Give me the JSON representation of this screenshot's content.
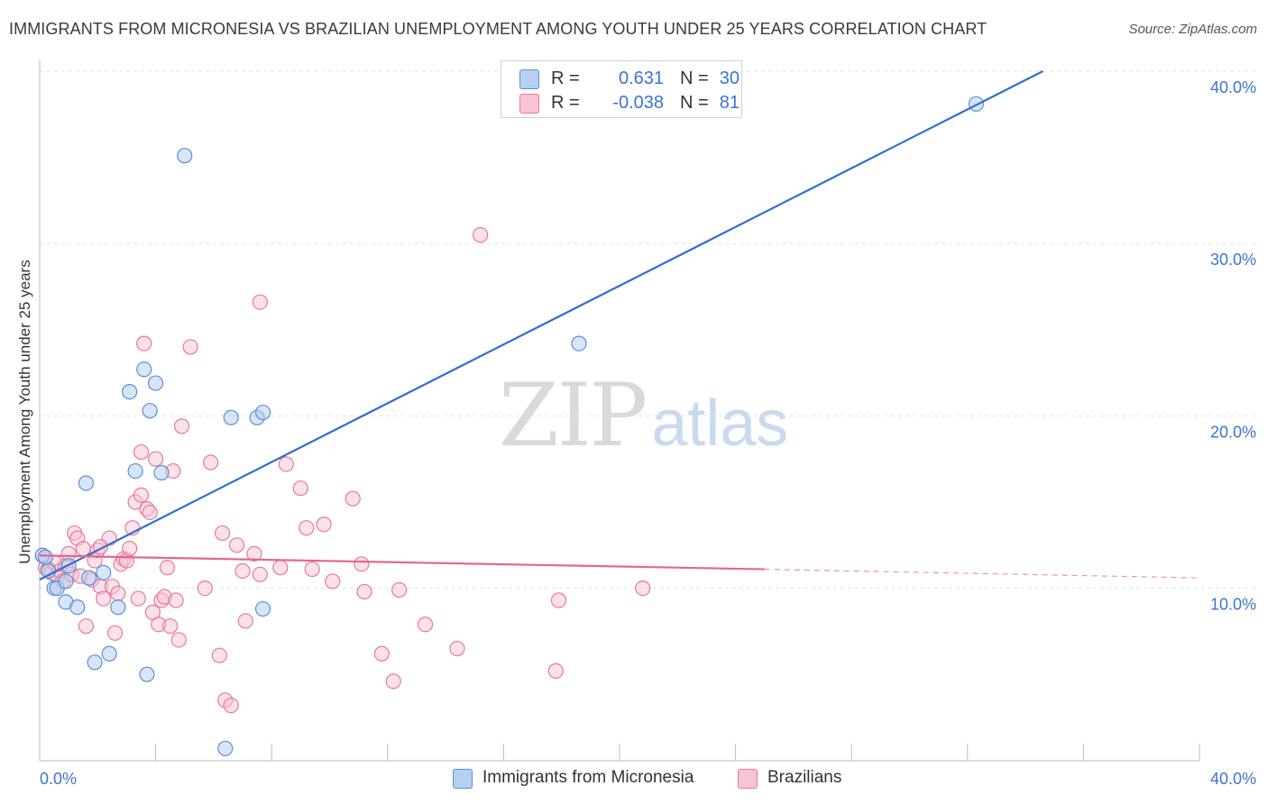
{
  "header": {
    "title": "IMMIGRANTS FROM MICRONESIA VS BRAZILIAN UNEMPLOYMENT AMONG YOUTH UNDER 25 YEARS CORRELATION CHART",
    "source": "Source: ZipAtlas.com"
  },
  "watermark": {
    "zip": "ZIP",
    "atlas": "atlas"
  },
  "legend": {
    "rows": [
      {
        "r_label": "R =",
        "r_value": "0.631",
        "n_label": "N =",
        "n_value": "30",
        "color": "#5b8fd9",
        "fill": "#b7d0f1"
      },
      {
        "r_label": "R =",
        "r_value": "-0.038",
        "n_label": "N =",
        "n_value": "81",
        "color": "#e8799b",
        "fill": "#f8c3d3"
      }
    ]
  },
  "colors": {
    "blue_stroke": "#5b8fd9",
    "blue_fill": "#b7d0f1",
    "blue_line": "#2f6fcf",
    "pink_stroke": "#e8799b",
    "pink_fill": "#f8c3d3",
    "pink_line": "#e66494",
    "tick_label": "#3b74d1"
  },
  "chart_data": {
    "type": "scatter",
    "title": "IMMIGRANTS FROM MICRONESIA VS BRAZILIAN UNEMPLOYMENT AMONG YOUTH UNDER 25 YEARS CORRELATION CHART",
    "xlabel": "",
    "ylabel": "Unemployment Among Youth under 25 years",
    "xlim": [
      0,
      40
    ],
    "ylim": [
      0,
      40
    ],
    "x_tick_labels": [
      {
        "value": 0,
        "label": "0.0%"
      },
      {
        "value": 40,
        "label": "40.0%"
      }
    ],
    "y_ticks": [
      {
        "value": 10,
        "label": "10.0%"
      },
      {
        "value": 20,
        "label": "20.0%"
      },
      {
        "value": 30,
        "label": "30.0%"
      },
      {
        "value": 40,
        "label": "40.0%"
      }
    ],
    "grid": true,
    "series": [
      {
        "name": "Immigrants from Micronesia",
        "color": "blue",
        "R": 0.631,
        "N": 30,
        "points": [
          [
            0.1,
            11.9
          ],
          [
            0.3,
            11.0
          ],
          [
            0.5,
            10.0
          ],
          [
            0.6,
            10.0
          ],
          [
            0.9,
            10.4
          ],
          [
            0.9,
            9.2
          ],
          [
            1.0,
            11.3
          ],
          [
            1.3,
            8.9
          ],
          [
            1.6,
            16.1
          ],
          [
            1.7,
            10.6
          ],
          [
            1.9,
            5.7
          ],
          [
            2.2,
            10.9
          ],
          [
            2.4,
            6.2
          ],
          [
            2.7,
            8.9
          ],
          [
            3.1,
            21.4
          ],
          [
            3.3,
            16.8
          ],
          [
            3.6,
            22.7
          ],
          [
            3.7,
            5.0
          ],
          [
            3.8,
            20.3
          ],
          [
            4.0,
            21.9
          ],
          [
            4.2,
            16.7
          ],
          [
            5.0,
            35.1
          ],
          [
            6.4,
            0.7
          ],
          [
            6.6,
            19.9
          ],
          [
            7.5,
            19.9
          ],
          [
            7.7,
            20.2
          ],
          [
            7.7,
            8.8
          ],
          [
            18.6,
            24.2
          ],
          [
            32.3,
            38.1
          ],
          [
            0.2,
            11.8
          ]
        ],
        "trend": {
          "x": [
            0.0,
            34.6
          ],
          "y": [
            10.5,
            40.0
          ]
        }
      },
      {
        "name": "Brazilians",
        "color": "pink",
        "R": -0.038,
        "N": 81,
        "points": [
          [
            0.1,
            11.9
          ],
          [
            0.2,
            11.2
          ],
          [
            0.3,
            11.1
          ],
          [
            0.4,
            10.9
          ],
          [
            0.5,
            11.5
          ],
          [
            0.6,
            10.7
          ],
          [
            0.7,
            11.0
          ],
          [
            0.8,
            10.4
          ],
          [
            0.9,
            11.3
          ],
          [
            1.0,
            12.0
          ],
          [
            1.1,
            10.8
          ],
          [
            1.2,
            13.2
          ],
          [
            1.3,
            12.9
          ],
          [
            1.4,
            10.7
          ],
          [
            1.5,
            12.3
          ],
          [
            1.6,
            7.8
          ],
          [
            1.8,
            10.5
          ],
          [
            1.9,
            11.6
          ],
          [
            2.0,
            12.2
          ],
          [
            2.1,
            10.1
          ],
          [
            2.2,
            9.4
          ],
          [
            2.4,
            12.9
          ],
          [
            2.5,
            10.1
          ],
          [
            2.6,
            7.4
          ],
          [
            2.7,
            9.7
          ],
          [
            2.8,
            11.4
          ],
          [
            2.9,
            11.7
          ],
          [
            3.0,
            11.6
          ],
          [
            3.1,
            12.3
          ],
          [
            3.2,
            13.5
          ],
          [
            3.3,
            15.0
          ],
          [
            3.4,
            9.4
          ],
          [
            3.5,
            17.9
          ],
          [
            3.6,
            24.2
          ],
          [
            3.7,
            14.6
          ],
          [
            3.8,
            14.4
          ],
          [
            3.9,
            8.6
          ],
          [
            4.0,
            17.5
          ],
          [
            4.1,
            7.9
          ],
          [
            4.2,
            9.3
          ],
          [
            4.3,
            9.5
          ],
          [
            4.4,
            11.2
          ],
          [
            4.5,
            7.8
          ],
          [
            4.6,
            16.8
          ],
          [
            4.7,
            9.3
          ],
          [
            4.8,
            7.0
          ],
          [
            4.9,
            19.4
          ],
          [
            5.2,
            24.0
          ],
          [
            5.7,
            10.0
          ],
          [
            5.9,
            17.3
          ],
          [
            6.2,
            6.1
          ],
          [
            6.3,
            13.2
          ],
          [
            6.4,
            3.5
          ],
          [
            6.6,
            3.2
          ],
          [
            6.8,
            12.5
          ],
          [
            7.0,
            11.0
          ],
          [
            7.1,
            8.1
          ],
          [
            7.4,
            12.0
          ],
          [
            7.6,
            10.8
          ],
          [
            8.3,
            11.2
          ],
          [
            8.5,
            17.2
          ],
          [
            9.0,
            15.8
          ],
          [
            9.2,
            13.5
          ],
          [
            9.4,
            11.1
          ],
          [
            9.8,
            13.7
          ],
          [
            10.1,
            10.4
          ],
          [
            10.8,
            15.2
          ],
          [
            11.1,
            11.4
          ],
          [
            11.8,
            6.2
          ],
          [
            12.2,
            4.6
          ],
          [
            13.3,
            7.9
          ],
          [
            14.4,
            6.5
          ],
          [
            15.2,
            30.5
          ],
          [
            17.8,
            5.2
          ],
          [
            17.9,
            9.3
          ],
          [
            20.8,
            10.0
          ],
          [
            7.6,
            26.6
          ],
          [
            3.5,
            15.4
          ],
          [
            12.4,
            9.9
          ],
          [
            11.2,
            9.8
          ],
          [
            2.1,
            12.4
          ]
        ],
        "trend": {
          "x": [
            0.0,
            25.0
          ],
          "y": [
            11.9,
            11.1
          ]
        },
        "trend_dashed": {
          "x": [
            25.0,
            40.0
          ],
          "y": [
            11.1,
            10.6
          ]
        }
      }
    ]
  },
  "bottom_legend": {
    "items": [
      {
        "label": "Immigrants from Micronesia"
      },
      {
        "label": "Brazilians"
      }
    ]
  }
}
